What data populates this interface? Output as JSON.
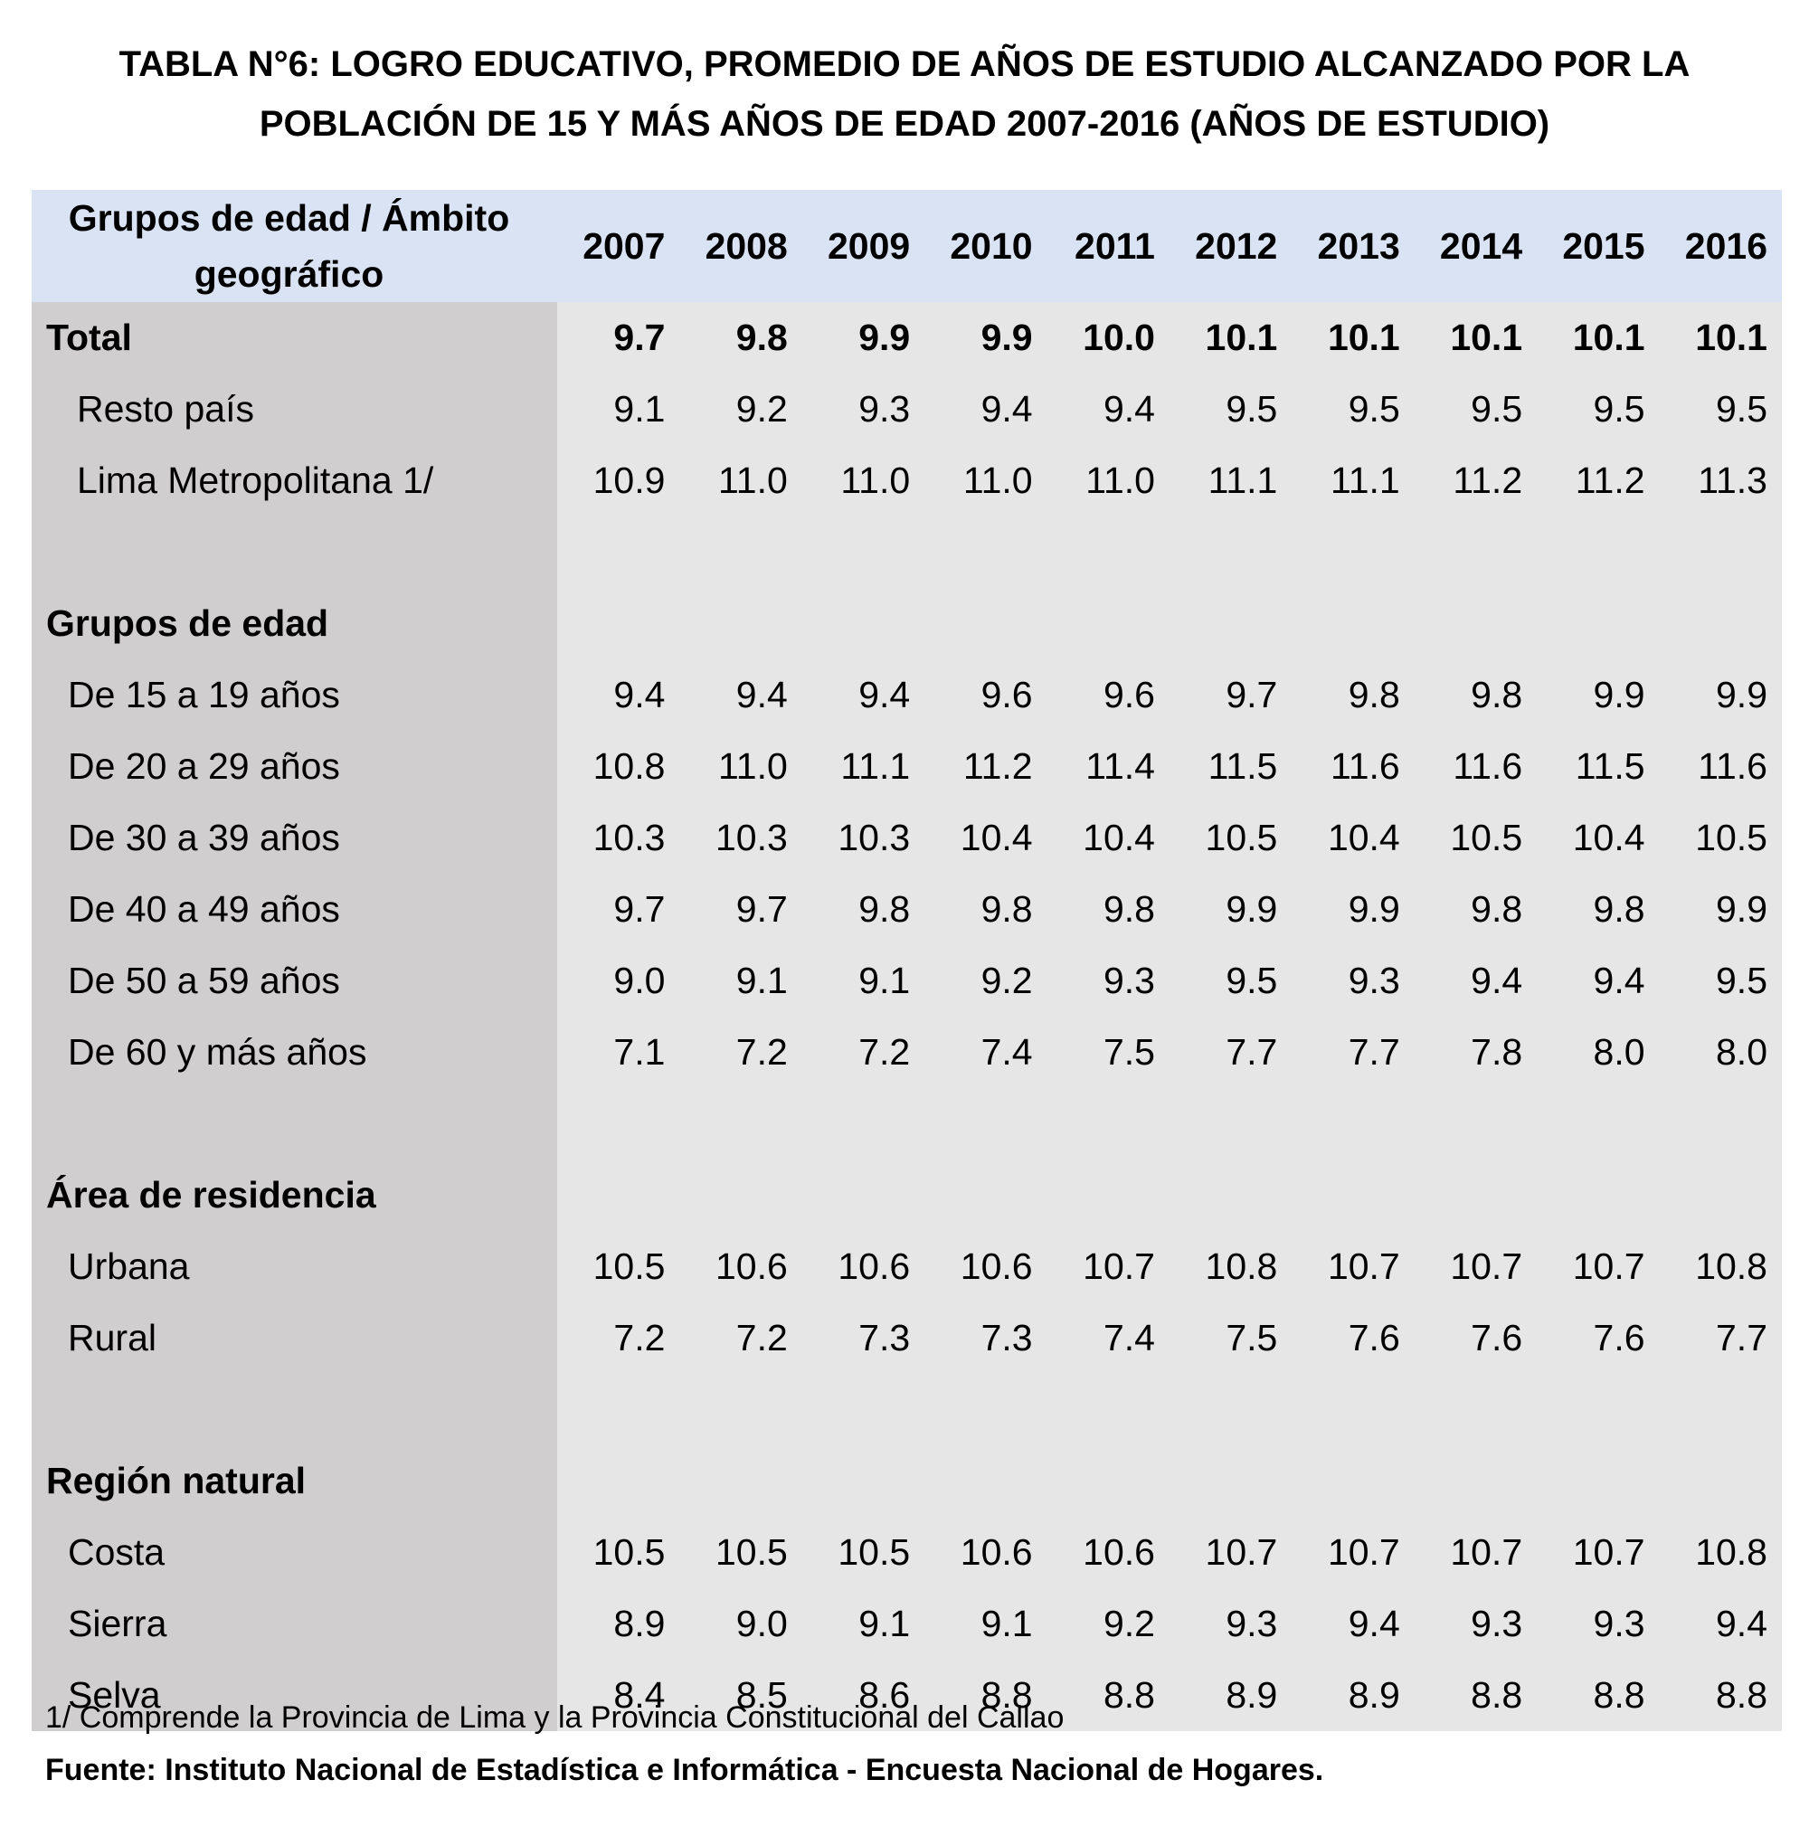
{
  "title": {
    "line1": "TABLA N°6: LOGRO EDUCATIVO, PROMEDIO DE AÑOS DE ESTUDIO ALCANZADO POR LA",
    "line2": "POBLACIÓN DE 15 Y MÁS AÑOS DE EDAD 2007-2016 (AÑOS DE ESTUDIO)"
  },
  "table": {
    "header_label_line1": "Grupos de edad / Ámbito",
    "header_label_line2": "geográfico",
    "years": [
      "2007",
      "2008",
      "2009",
      "2010",
      "2011",
      "2012",
      "2013",
      "2014",
      "2015",
      "2016"
    ],
    "rows": [
      {
        "kind": "total",
        "label": "Total",
        "values": [
          "9.7",
          "9.8",
          "9.9",
          "9.9",
          "10.0",
          "10.1",
          "10.1",
          "10.1",
          "10.1",
          "10.1"
        ]
      },
      {
        "kind": "sub-a",
        "label": "Resto país",
        "values": [
          "9.1",
          "9.2",
          "9.3",
          "9.4",
          "9.4",
          "9.5",
          "9.5",
          "9.5",
          "9.5",
          "9.5"
        ]
      },
      {
        "kind": "sub-a",
        "label": "Lima Metropolitana 1/",
        "values": [
          "10.9",
          "11.0",
          "11.0",
          "11.0",
          "11.0",
          "11.1",
          "11.1",
          "11.2",
          "11.2",
          "11.3"
        ]
      },
      {
        "kind": "spacer"
      },
      {
        "kind": "section",
        "label": "Grupos de edad"
      },
      {
        "kind": "sub-b",
        "label": "De 15 a 19 años",
        "values": [
          "9.4",
          "9.4",
          "9.4",
          "9.6",
          "9.6",
          "9.7",
          "9.8",
          "9.8",
          "9.9",
          "9.9"
        ]
      },
      {
        "kind": "sub-b",
        "label": "De 20 a 29 años",
        "values": [
          "10.8",
          "11.0",
          "11.1",
          "11.2",
          "11.4",
          "11.5",
          "11.6",
          "11.6",
          "11.5",
          "11.6"
        ]
      },
      {
        "kind": "sub-b",
        "label": "De 30 a 39 años",
        "values": [
          "10.3",
          "10.3",
          "10.3",
          "10.4",
          "10.4",
          "10.5",
          "10.4",
          "10.5",
          "10.4",
          "10.5"
        ]
      },
      {
        "kind": "sub-b",
        "label": "De 40 a 49 años",
        "values": [
          "9.7",
          "9.7",
          "9.8",
          "9.8",
          "9.8",
          "9.9",
          "9.9",
          "9.8",
          "9.8",
          "9.9"
        ]
      },
      {
        "kind": "sub-b",
        "label": "De 50 a 59 años",
        "values": [
          "9.0",
          "9.1",
          "9.1",
          "9.2",
          "9.3",
          "9.5",
          "9.3",
          "9.4",
          "9.4",
          "9.5"
        ]
      },
      {
        "kind": "sub-b",
        "label": "De 60 y más años",
        "values": [
          "7.1",
          "7.2",
          "7.2",
          "7.4",
          "7.5",
          "7.7",
          "7.7",
          "7.8",
          "8.0",
          "8.0"
        ]
      },
      {
        "kind": "spacer"
      },
      {
        "kind": "section",
        "label": "Área de residencia"
      },
      {
        "kind": "sub-b",
        "label": "Urbana",
        "values": [
          "10.5",
          "10.6",
          "10.6",
          "10.6",
          "10.7",
          "10.8",
          "10.7",
          "10.7",
          "10.7",
          "10.8"
        ]
      },
      {
        "kind": "sub-b",
        "label": "Rural",
        "values": [
          "7.2",
          "7.2",
          "7.3",
          "7.3",
          "7.4",
          "7.5",
          "7.6",
          "7.6",
          "7.6",
          "7.7"
        ]
      },
      {
        "kind": "spacer"
      },
      {
        "kind": "section",
        "label": "Región natural"
      },
      {
        "kind": "sub-b",
        "label": "Costa",
        "values": [
          "10.5",
          "10.5",
          "10.5",
          "10.6",
          "10.6",
          "10.7",
          "10.7",
          "10.7",
          "10.7",
          "10.8"
        ]
      },
      {
        "kind": "sub-b",
        "label": "Sierra",
        "values": [
          "8.9",
          "9.0",
          "9.1",
          "9.1",
          "9.2",
          "9.3",
          "9.4",
          "9.3",
          "9.3",
          "9.4"
        ]
      },
      {
        "kind": "sub-b",
        "label": "Selva",
        "values": [
          "8.4",
          "8.5",
          "8.6",
          "8.8",
          "8.8",
          "8.9",
          "8.9",
          "8.8",
          "8.8",
          "8.8"
        ]
      }
    ]
  },
  "footnote": "1/ Comprende la Provincia de Lima y la Provincia Constitucional del Callao",
  "source": "Fuente: Instituto Nacional de Estadística e Informática - Encuesta Nacional de Hogares.",
  "colors": {
    "header_bg": "#dae3f3",
    "label_col_bg": "#d0cece",
    "value_bg": "#e7e6e6"
  }
}
